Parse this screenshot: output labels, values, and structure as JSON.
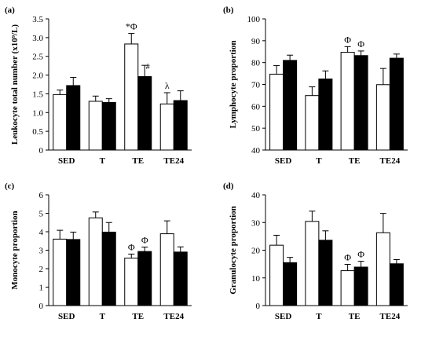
{
  "chart_data": [
    {
      "panel_label": "(a)",
      "type": "bar",
      "categories": [
        "SED",
        "T",
        "TE",
        "TE24"
      ],
      "series": [
        {
          "color": "#ffffff",
          "values": [
            1.48,
            1.3,
            2.83,
            1.23
          ],
          "errors": [
            0.12,
            0.14,
            0.28,
            0.3
          ]
        },
        {
          "color": "#000000",
          "values": [
            1.72,
            1.27,
            1.96,
            1.32
          ],
          "errors": [
            0.22,
            0.1,
            0.3,
            0.26
          ]
        }
      ],
      "ylabel": "Leukocyte total number (x10⁹/L)",
      "ylim": [
        0,
        3.5
      ],
      "yticks": [
        0,
        0.5,
        1.0,
        1.5,
        2.0,
        2.5,
        3.0,
        3.5
      ],
      "ytick_labels": [
        "0",
        "0.5",
        "1.0",
        "1.5",
        "2.0",
        "2.5",
        "3.0",
        "3.5"
      ],
      "annotations": [
        {
          "text": "*Φ",
          "category": 2,
          "series": 0
        },
        {
          "text": "#",
          "category": 2,
          "series": 1
        },
        {
          "text": "λ",
          "category": 3,
          "series": 0
        }
      ]
    },
    {
      "panel_label": "(b)",
      "type": "bar",
      "categories": [
        "SED",
        "T",
        "TE",
        "TE24"
      ],
      "series": [
        {
          "color": "#ffffff",
          "values": [
            74.7,
            64.9,
            84.7,
            69.9
          ],
          "errors": [
            3.9,
            4.0,
            2.6,
            7.4
          ]
        },
        {
          "color": "#000000",
          "values": [
            81.0,
            72.5,
            83.2,
            82.0
          ],
          "errors": [
            2.4,
            3.7,
            2.1,
            1.9
          ]
        }
      ],
      "ylabel": "Lymphocyte proportion",
      "ylim": [
        40,
        100
      ],
      "yticks": [
        40,
        50,
        60,
        70,
        80,
        90,
        100
      ],
      "ytick_labels": [
        "40",
        "50",
        "60",
        "70",
        "80",
        "90",
        "100"
      ],
      "annotations": [
        {
          "text": "Φ",
          "category": 2,
          "series": 0
        },
        {
          "text": "Φ",
          "category": 2,
          "series": 1
        }
      ]
    },
    {
      "panel_label": "(c)",
      "type": "bar",
      "categories": [
        "SED",
        "T",
        "TE",
        "TE24"
      ],
      "series": [
        {
          "color": "#ffffff",
          "values": [
            3.6,
            4.75,
            2.57,
            3.89
          ],
          "errors": [
            0.48,
            0.32,
            0.22,
            0.7
          ]
        },
        {
          "color": "#000000",
          "values": [
            3.58,
            3.98,
            2.93,
            2.9
          ],
          "errors": [
            0.4,
            0.52,
            0.24,
            0.28
          ]
        }
      ],
      "ylabel": "Monocyte proportion",
      "ylim": [
        0,
        6
      ],
      "yticks": [
        0,
        1,
        2,
        3,
        4,
        5,
        6
      ],
      "ytick_labels": [
        "0",
        "1",
        "2",
        "3",
        "4",
        "5",
        "6"
      ],
      "annotations": [
        {
          "text": "Φ",
          "category": 2,
          "series": 0
        },
        {
          "text": "Φ",
          "category": 2,
          "series": 1
        }
      ]
    },
    {
      "panel_label": "(d)",
      "type": "bar",
      "categories": [
        "SED",
        "T",
        "TE",
        "TE24"
      ],
      "series": [
        {
          "color": "#ffffff",
          "values": [
            21.8,
            30.4,
            12.6,
            26.3
          ],
          "errors": [
            3.6,
            3.7,
            2.3,
            7.0
          ]
        },
        {
          "color": "#000000",
          "values": [
            15.5,
            23.6,
            13.9,
            15.1
          ],
          "errors": [
            1.9,
            3.4,
            2.1,
            1.5
          ]
        }
      ],
      "ylabel": "Granulocyte proportion",
      "ylim": [
        0,
        40
      ],
      "yticks": [
        0,
        10,
        20,
        30,
        40
      ],
      "ytick_labels": [
        "0",
        "10",
        "20",
        "30",
        "40"
      ],
      "annotations": [
        {
          "text": "Φ",
          "category": 2,
          "series": 0
        },
        {
          "text": "Φ",
          "category": 2,
          "series": 1
        }
      ]
    }
  ]
}
